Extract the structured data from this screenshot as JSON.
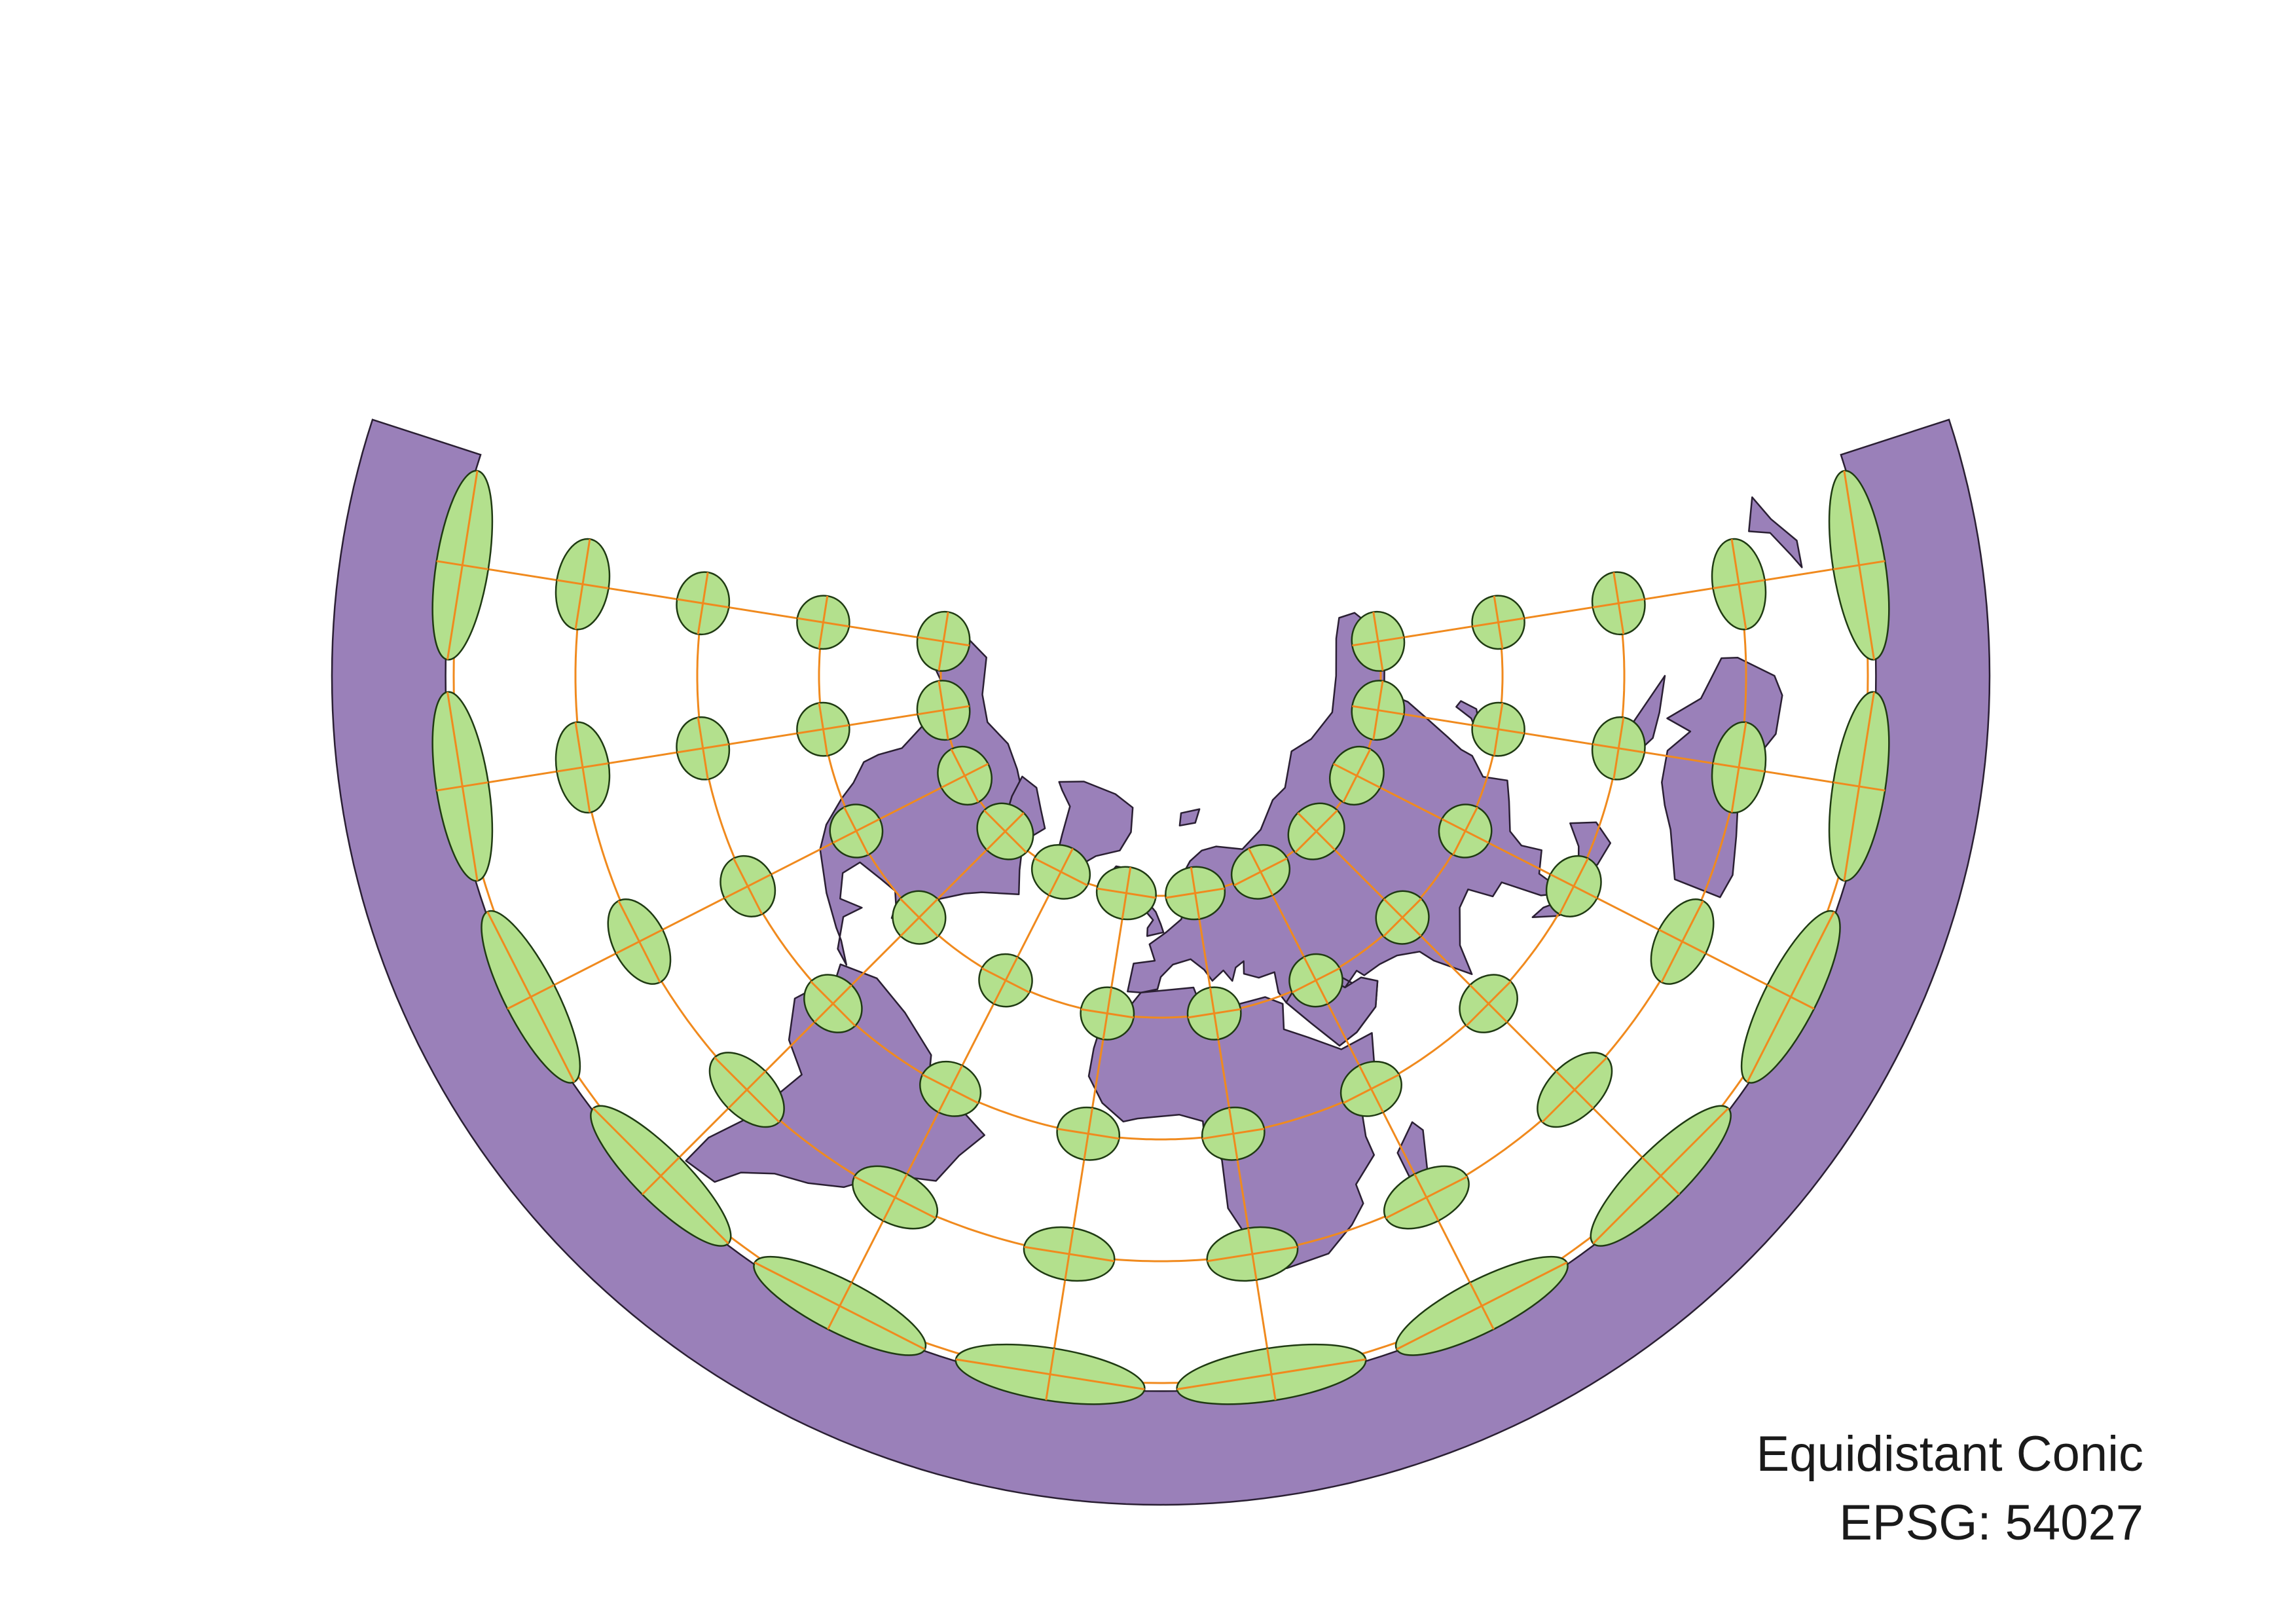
{
  "map": {
    "projection_name": "Equidistant Conic",
    "epsg_label": "EPSG: 54027",
    "colors": {
      "land": "#9a80b9",
      "land_stroke": "#2a1f33",
      "indicatrix_fill": "#b3e08d",
      "indicatrix_stroke": "#1f3a12",
      "graticule": "#f08a1e",
      "background": "#ffffff"
    },
    "graticule": {
      "meridian_spacing_deg": 30,
      "parallel_spacing_deg": 30
    },
    "layers": [
      "land",
      "tissot-indicatrix",
      "graticule"
    ]
  }
}
